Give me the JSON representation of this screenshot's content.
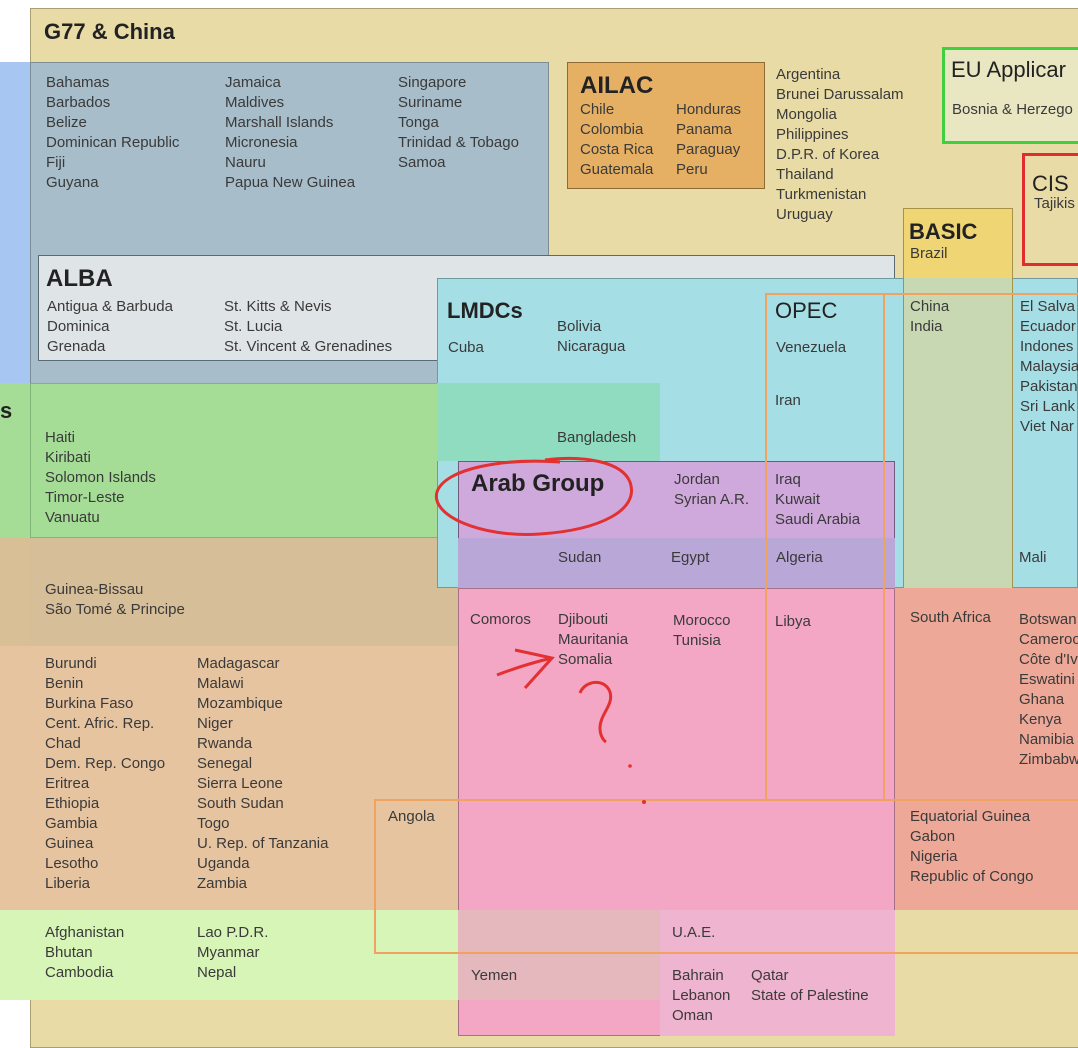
{
  "groups": {
    "g77": {
      "title": "G77 & China"
    },
    "sids": {
      "col1": [
        "Bahamas",
        "Barbados",
        "Belize",
        "Dominican Republic",
        "Fiji",
        "Guyana"
      ],
      "col2": [
        "Jamaica",
        "Maldives",
        "Marshall Islands",
        "Micronesia",
        "Nauru",
        "Papua New Guinea"
      ],
      "col3": [
        "Singapore",
        "Suriname",
        "Tonga",
        "Trinidad & Tobago",
        "Samoa"
      ]
    },
    "ailac": {
      "title": "AILAC",
      "col1": [
        "Chile",
        "Colombia",
        "Costa Rica",
        "Guatemala"
      ],
      "col2": [
        "Honduras",
        "Panama",
        "Paraguay",
        "Peru"
      ]
    },
    "g77_other": [
      "Argentina",
      "Brunei Darussalam",
      "Mongolia",
      "Philippines",
      "D.P.R. of Korea",
      "Thailand",
      "Turkmenistan",
      "Uruguay"
    ],
    "eu": {
      "title": "EU Applicar",
      "members": [
        "Bosnia & Herzego"
      ]
    },
    "cis": {
      "title": "CIS",
      "members": [
        "Tajikis"
      ]
    },
    "basic": {
      "title": "BASIC",
      "members": [
        "Brazil"
      ],
      "members2": [
        "China",
        "India"
      ]
    },
    "alba": {
      "title": "ALBA",
      "col1": [
        "Antigua & Barbuda",
        "Dominica",
        "Grenada"
      ],
      "col2": [
        "St. Kitts & Nevis",
        "St. Lucia",
        "St. Vincent & Grenadines"
      ]
    },
    "lmdcs": {
      "title": "LMDCs",
      "cuba": "Cuba",
      "col2": [
        "Bolivia",
        "Nicaragua"
      ],
      "bangladesh": "Bangladesh"
    },
    "opec": {
      "title": "OPEC",
      "venezuela": "Venezuela",
      "iran": "Iran"
    },
    "right_col": [
      "El Salva",
      "Ecuador",
      "Indones",
      "Malaysia",
      "Pakistan",
      "Sri Lank",
      "Viet Nar"
    ],
    "ldc_pacific": {
      "label": "s",
      "members": [
        "Haiti",
        "Kiribati",
        "Solomon Islands",
        "Timor-Leste",
        "Vanuatu"
      ]
    },
    "arab": {
      "title": "Arab Group",
      "jordan": [
        "Jordan",
        "Syrian A.R."
      ],
      "gulf": [
        "Iraq",
        "Kuwait",
        "Saudi Arabia"
      ],
      "sudan": "Sudan",
      "egypt": "Egypt",
      "algeria": "Algeria",
      "mali": "Mali",
      "comoros": "Comoros",
      "djibouti": [
        "Djibouti",
        "Mauritania",
        "Somalia"
      ],
      "morocco": [
        "Morocco",
        "Tunisia"
      ],
      "libya": "Libya",
      "uae": "U.A.E.",
      "yemen": "Yemen",
      "bahrain": [
        "Bahrain",
        "Lebanon",
        "Oman"
      ],
      "qatar": [
        "Qatar",
        "State of Palestine"
      ]
    },
    "guinea_bissau": [
      "Guinea-Bissau",
      "São Tomé & Principe"
    ],
    "south_africa": "South Africa",
    "africa_right": [
      "Botswan",
      "Cameroo",
      "Côte d'Iv",
      "Eswatini",
      "Ghana",
      "Kenya",
      "Namibia",
      "Zimbabw"
    ],
    "africa_ldc": {
      "col1": [
        "Burundi",
        "Benin",
        "Burkina Faso",
        "Cent. Afric. Rep.",
        "Chad",
        "Dem. Rep. Congo",
        "Eritrea",
        "Ethiopia",
        "Gambia",
        "Guinea",
        "Lesotho",
        "Liberia"
      ],
      "col2": [
        "Madagascar",
        "Malawi",
        "Mozambique",
        "Niger",
        "Rwanda",
        "Senegal",
        "Sierra Leone",
        "South Sudan",
        "Togo",
        "U. Rep. of Tanzania",
        "Uganda",
        "Zambia"
      ]
    },
    "angola": "Angola",
    "central_africa": [
      "Equatorial Guinea",
      "Gabon",
      "Nigeria",
      "Republic of Congo"
    ],
    "asia_ldc": {
      "col1": [
        "Afghanistan",
        "Bhutan",
        "Cambodia"
      ],
      "col2": [
        "Lao P.D.R.",
        "Myanmar",
        "Nepal"
      ]
    }
  },
  "colors": {
    "g77": "#e8dba6",
    "sids": "#a7bdc9",
    "ailac": "#e6b064",
    "alba": "#dfe4e6",
    "lmdcs": "#a6dee6",
    "ldc_green": "#a5dd97",
    "arab": "#cfa9dc",
    "africa": "#e7c4a0",
    "pink": "#f3a7c4",
    "opec": "#f0a260",
    "eu": "#3fcf3f",
    "cis": "#e22d2d",
    "basic": "#efd574",
    "blue_edge": "#a8c6f2",
    "light_green": "#d8f5b8",
    "ink": "#e33030"
  }
}
